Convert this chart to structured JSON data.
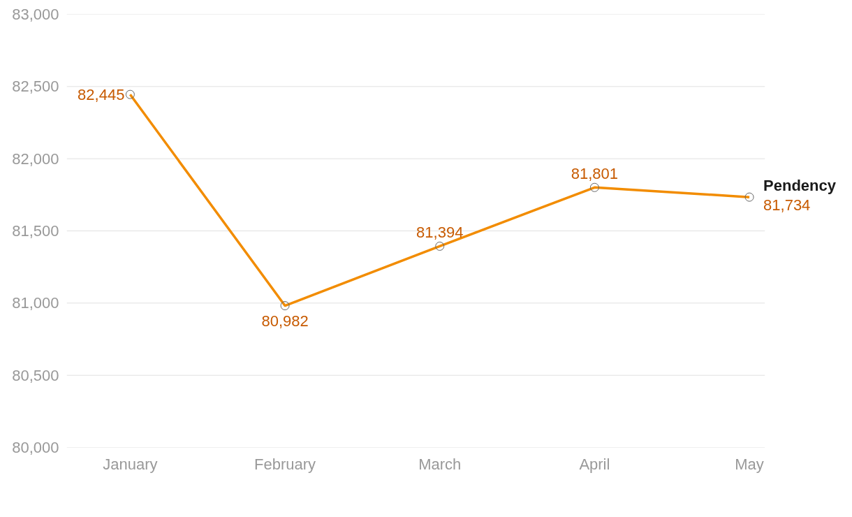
{
  "chart_data": {
    "type": "line",
    "categories": [
      "January",
      "February",
      "March",
      "April",
      "May"
    ],
    "series": [
      {
        "name": "Pendency",
        "color": "#f28c00",
        "values": [
          82445,
          80982,
          81394,
          81801,
          81734
        ],
        "value_labels": [
          "82,445",
          "80,982",
          "81,394",
          "81,801",
          "81,734"
        ]
      }
    ],
    "ylim": [
      80000,
      83000
    ],
    "yticks": [
      {
        "value": 80000,
        "label": "80,000"
      },
      {
        "value": 80500,
        "label": "80,500"
      },
      {
        "value": 81000,
        "label": "81,000"
      },
      {
        "value": 81500,
        "label": "81,500"
      },
      {
        "value": 82000,
        "label": "82,000"
      },
      {
        "value": 82500,
        "label": "82,500"
      },
      {
        "value": 83000,
        "label": "83,000"
      }
    ],
    "grid": "y",
    "marker": "circle",
    "line_style": "solid"
  }
}
